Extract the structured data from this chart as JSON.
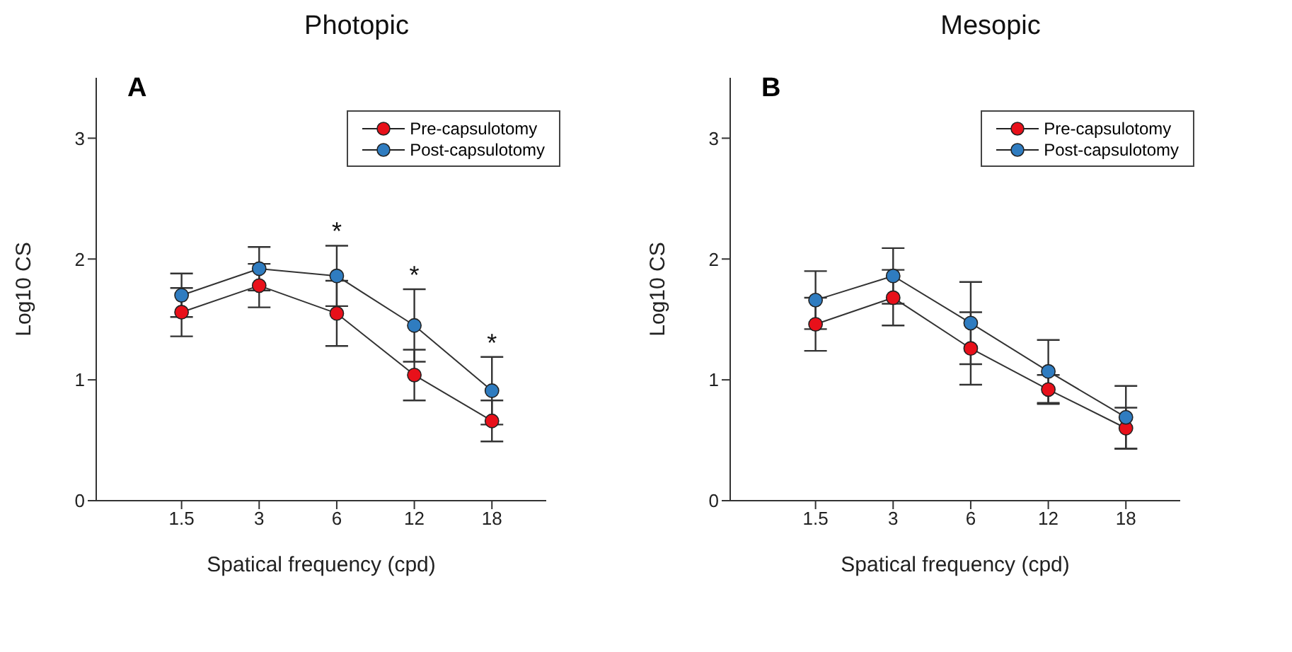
{
  "chart_data": [
    {
      "type": "line",
      "title": "Photopic",
      "xlabel": "Spatical frequency (cpd)",
      "ylabel": "Log10 CS",
      "categories": [
        "1.5",
        "3",
        "6",
        "12",
        "18"
      ],
      "ylim": [
        0,
        3.5
      ],
      "yticks": [
        0,
        1,
        2,
        3
      ],
      "grid": false,
      "legend": "top right",
      "marker": "circle",
      "line_style": "solid",
      "series": [
        {
          "name": "Pre-capsulotomy",
          "color": "#e8101a",
          "values": [
            1.56,
            1.78,
            1.55,
            1.04,
            0.66
          ],
          "errors": [
            0.2,
            0.18,
            0.27,
            0.21,
            0.17
          ]
        },
        {
          "name": "Post-capsulotomy",
          "color": "#2f7cc0",
          "values": [
            1.7,
            1.92,
            1.86,
            1.45,
            0.91
          ],
          "errors": [
            0.18,
            0.18,
            0.25,
            0.3,
            0.28
          ]
        }
      ],
      "annotations": [
        "A",
        {
          "text": "*",
          "x": "6",
          "y": 2.11
        },
        {
          "text": "*",
          "x": "12",
          "y": 1.75
        },
        {
          "text": "*",
          "x": "18",
          "y": 1.19
        }
      ]
    },
    {
      "type": "line",
      "title": "Mesopic",
      "xlabel": "Spatical frequency (cpd)",
      "ylabel": "Log10 CS",
      "categories": [
        "1.5",
        "3",
        "6",
        "12",
        "18"
      ],
      "ylim": [
        0,
        3.5
      ],
      "yticks": [
        0,
        1,
        2,
        3
      ],
      "grid": false,
      "legend": "top right",
      "marker": "circle",
      "line_style": "solid",
      "series": [
        {
          "name": "Pre-capsulotomy",
          "color": "#e8101a",
          "values": [
            1.46,
            1.68,
            1.26,
            0.92,
            0.6
          ],
          "errors": [
            0.22,
            0.23,
            0.3,
            0.12,
            0.17
          ]
        },
        {
          "name": "Post-capsulotomy",
          "color": "#2f7cc0",
          "values": [
            1.66,
            1.86,
            1.47,
            1.07,
            0.69
          ],
          "errors": [
            0.24,
            0.23,
            0.34,
            0.26,
            0.26
          ]
        }
      ],
      "annotations": [
        "B"
      ]
    }
  ]
}
